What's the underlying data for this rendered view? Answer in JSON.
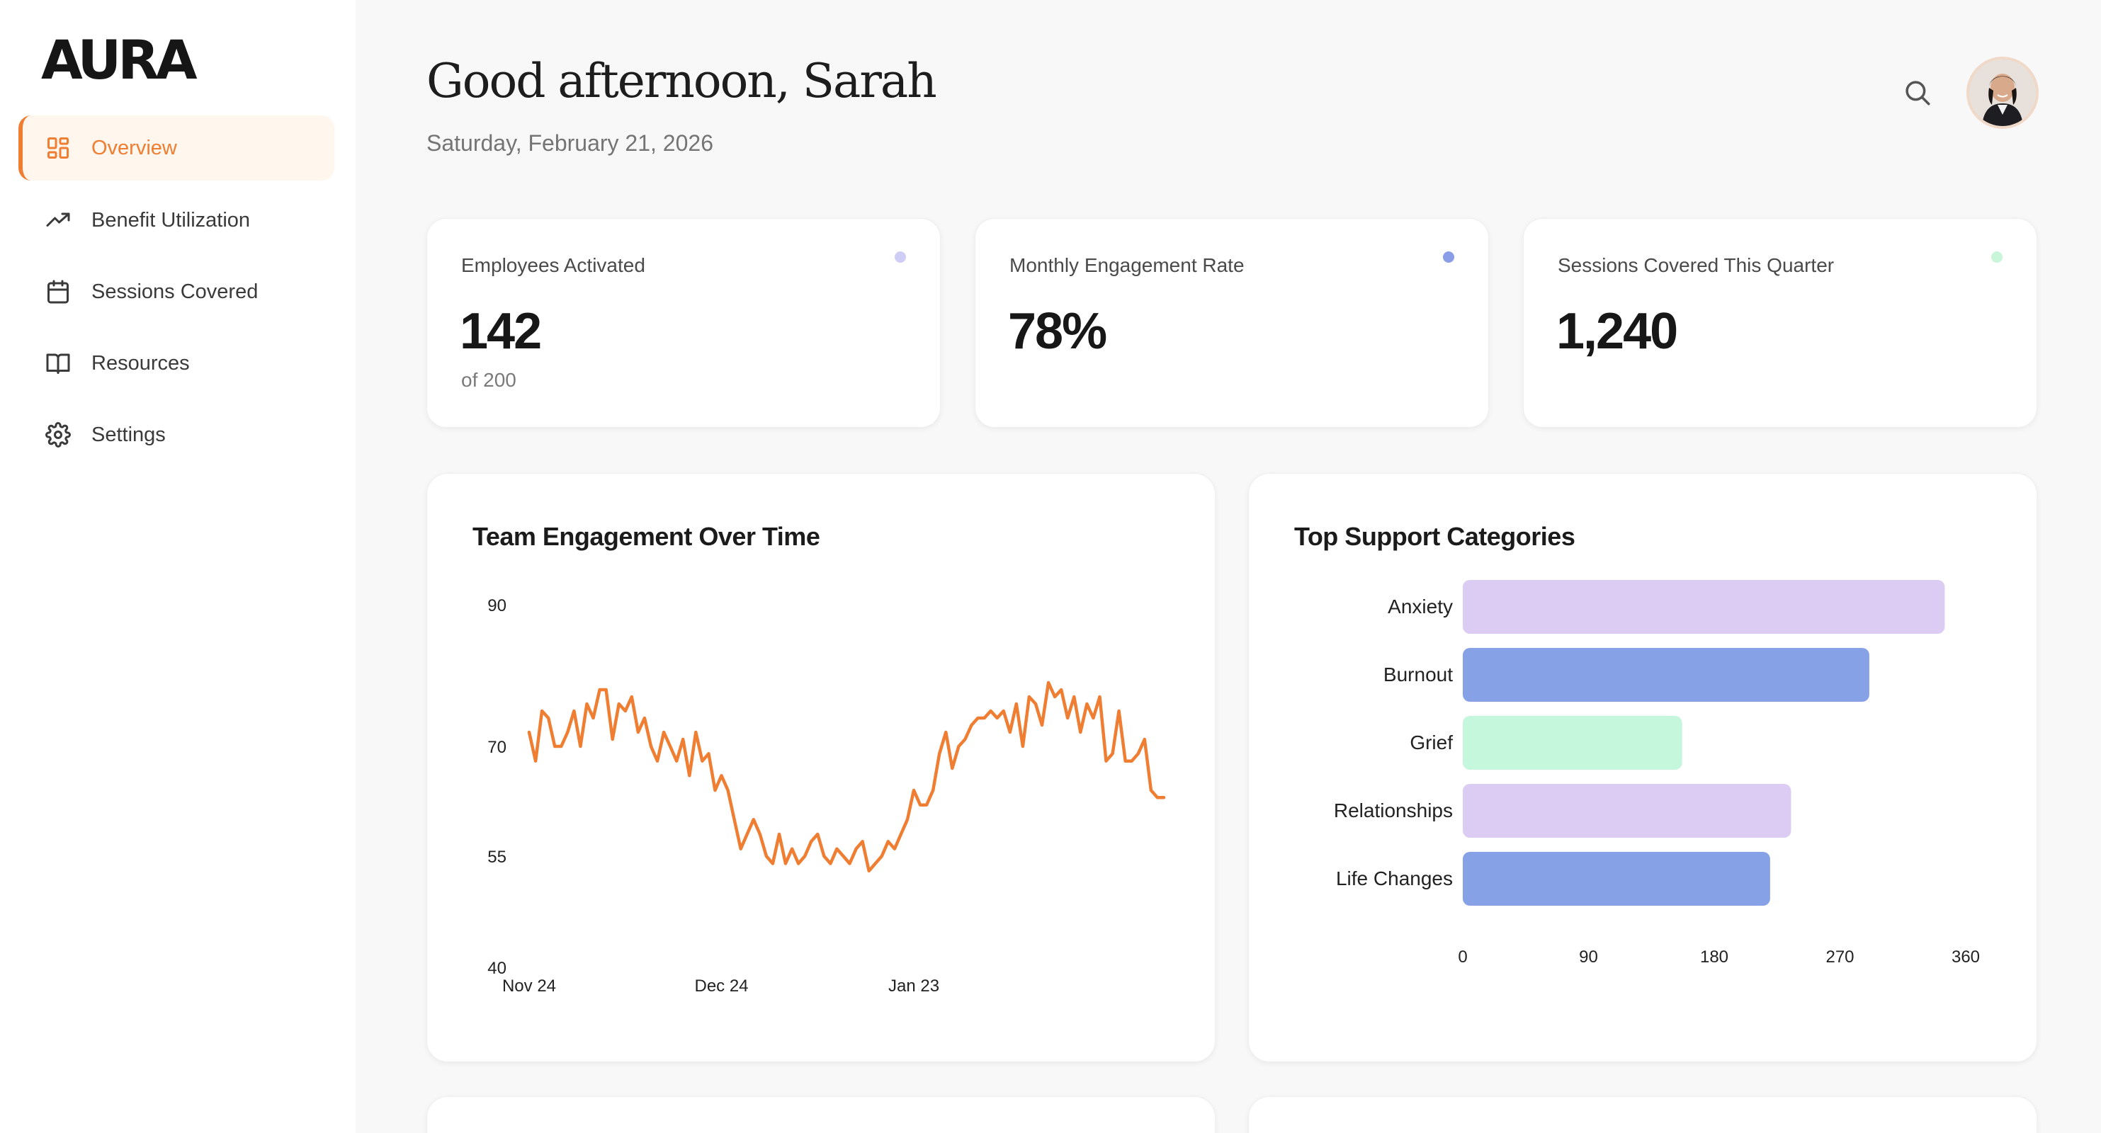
{
  "app": {
    "logo": "AURA"
  },
  "sidebar": {
    "items": [
      {
        "label": "Overview",
        "icon": "grid-icon",
        "active": true
      },
      {
        "label": "Benefit Utilization",
        "icon": "trending-up-icon",
        "active": false
      },
      {
        "label": "Sessions Covered",
        "icon": "calendar-icon",
        "active": false
      },
      {
        "label": "Resources",
        "icon": "book-icon",
        "active": false
      },
      {
        "label": "Settings",
        "icon": "gear-icon",
        "active": false
      }
    ]
  },
  "header": {
    "greeting": "Good afternoon, Sarah",
    "date": "Saturday, February 21, 2026"
  },
  "stats": [
    {
      "label": "Employees Activated",
      "value": "142",
      "sub": "of 200",
      "dot_color": "#cfcdf5"
    },
    {
      "label": "Monthly Engagement Rate",
      "value": "78%",
      "sub": "",
      "dot_color": "#8a9ee8"
    },
    {
      "label": "Sessions Covered This Quarter",
      "value": "1,240",
      "sub": "",
      "dot_color": "#c9f5d9"
    }
  ],
  "colors": {
    "accent": "#ef7d32",
    "line": "#ef7d32",
    "purple": "#dccbf3",
    "blue": "#87a1e6",
    "green": "#c5f7dc"
  },
  "chart_data": [
    {
      "type": "line",
      "title": "Team Engagement Over Time",
      "yticks": [
        "90",
        "70",
        "55",
        "40"
      ],
      "xticks": [
        "Nov 24",
        "Dec 24",
        "Jan 23"
      ],
      "ylim": [
        40,
        90
      ],
      "x_tick_positions": [
        0,
        30,
        60
      ],
      "values": [
        72,
        68,
        75,
        74,
        70,
        70,
        72,
        75,
        70,
        76,
        74,
        78,
        78,
        71,
        76,
        75,
        77,
        72,
        74,
        70,
        68,
        72,
        70,
        68,
        71,
        66,
        72,
        68,
        69,
        64,
        66,
        64,
        60,
        56,
        58,
        60,
        58,
        55,
        54,
        58,
        54,
        56,
        54,
        55,
        57,
        58,
        55,
        54,
        56,
        55,
        54,
        56,
        57,
        53,
        54,
        55,
        57,
        56,
        58,
        60,
        64,
        62,
        62,
        64,
        69,
        72,
        67,
        70,
        71,
        73,
        74,
        74,
        75,
        74,
        75,
        72,
        76,
        70,
        77,
        76,
        73,
        79,
        77,
        78,
        74,
        77,
        72,
        76,
        74,
        77,
        68,
        69,
        75,
        68,
        68,
        69,
        71,
        64,
        63,
        63
      ],
      "line_color": "#ef7d32"
    },
    {
      "type": "bar",
      "orientation": "horizontal",
      "title": "Top Support Categories",
      "categories": [
        "Anxiety",
        "Burnout",
        "Grief",
        "Relationships",
        "Life Changes"
      ],
      "values": [
        345,
        291,
        157,
        235,
        220
      ],
      "colors": [
        "#dccbf3",
        "#87a1e6",
        "#c5f7dc",
        "#dccbf3",
        "#87a1e6"
      ],
      "xticks": [
        "0",
        "90",
        "180",
        "270",
        "360"
      ],
      "xlim": [
        0,
        360
      ]
    }
  ]
}
